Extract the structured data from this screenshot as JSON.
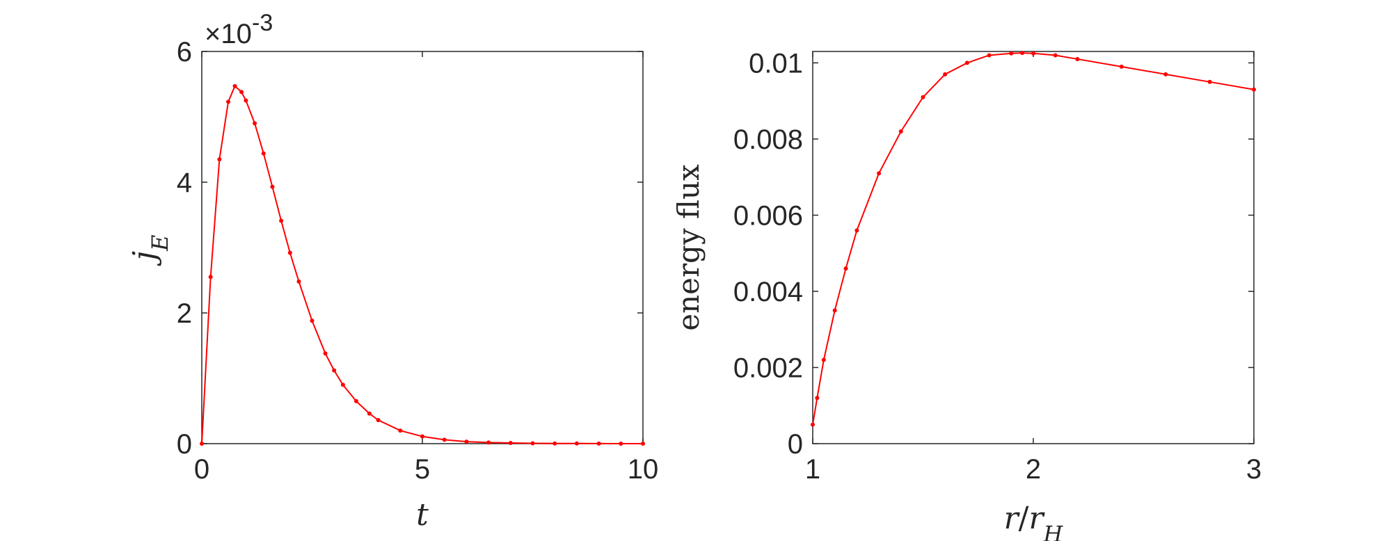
{
  "chart_data": [
    {
      "type": "line",
      "title": "",
      "xlabel": "t",
      "ylabel_main": "j",
      "ylabel_sub": "E",
      "xlim": [
        0,
        10
      ],
      "ylim": [
        0,
        0.006
      ],
      "xticks": [
        0,
        5,
        10
      ],
      "xtick_labels": [
        "0",
        "5",
        "10"
      ],
      "yticks": [
        0,
        0.002,
        0.004,
        0.006
      ],
      "ytick_labels": [
        "0",
        "2",
        "4",
        "6"
      ],
      "y_exponent_base": "×10",
      "y_exponent_power": "-3",
      "grid": false,
      "legend": "none",
      "marker": "dot",
      "series": [
        {
          "color": "#ff0000",
          "x": [
            0,
            0.2,
            0.4,
            0.6,
            0.75,
            0.9,
            1.0,
            1.2,
            1.4,
            1.6,
            1.8,
            2.0,
            2.2,
            2.5,
            2.8,
            3.0,
            3.2,
            3.5,
            3.8,
            4.0,
            4.5,
            5.0,
            5.5,
            6.0,
            6.5,
            7.0,
            7.5,
            8.0,
            8.5,
            9.0,
            9.5,
            10.0
          ],
          "y": [
            0,
            0.00255,
            0.00435,
            0.00523,
            0.00547,
            0.00538,
            0.00525,
            0.0049,
            0.00444,
            0.00393,
            0.00341,
            0.00292,
            0.00248,
            0.00188,
            0.00138,
            0.00112,
            0.0009,
            0.00065,
            0.00046,
            0.00036,
            0.0002,
            0.00011,
            6e-05,
            3e-05,
            1.7e-05,
            1e-05,
            5e-06,
            3e-06,
            2e-06,
            1e-06,
            5e-07,
            2e-07
          ]
        }
      ]
    },
    {
      "type": "line",
      "title": "",
      "xlabel_num": "r",
      "xlabel_den": "r",
      "xlabel_den_sub": "H",
      "ylabel": "energy flux",
      "xlim": [
        1,
        3
      ],
      "ylim": [
        0,
        0.0103
      ],
      "xticks": [
        1,
        2,
        3
      ],
      "xtick_labels": [
        "1",
        "2",
        "3"
      ],
      "yticks": [
        0,
        0.002,
        0.004,
        0.006,
        0.008,
        0.01
      ],
      "ytick_labels": [
        "0",
        "0.002",
        "0.004",
        "0.006",
        "0.008",
        "0.01"
      ],
      "grid": false,
      "legend": "none",
      "marker": "dot",
      "series": [
        {
          "color": "#ff0000",
          "x": [
            1.0,
            1.02,
            1.05,
            1.1,
            1.15,
            1.2,
            1.3,
            1.4,
            1.5,
            1.6,
            1.7,
            1.8,
            1.9,
            1.95,
            2.0,
            2.1,
            2.2,
            2.4,
            2.6,
            2.8,
            3.0
          ],
          "y": [
            0.0005,
            0.0012,
            0.0022,
            0.0035,
            0.0046,
            0.0056,
            0.0071,
            0.0082,
            0.0091,
            0.0097,
            0.01,
            0.0102,
            0.01025,
            0.01026,
            0.01025,
            0.0102,
            0.0101,
            0.0099,
            0.0097,
            0.0095,
            0.0093
          ]
        }
      ]
    }
  ]
}
